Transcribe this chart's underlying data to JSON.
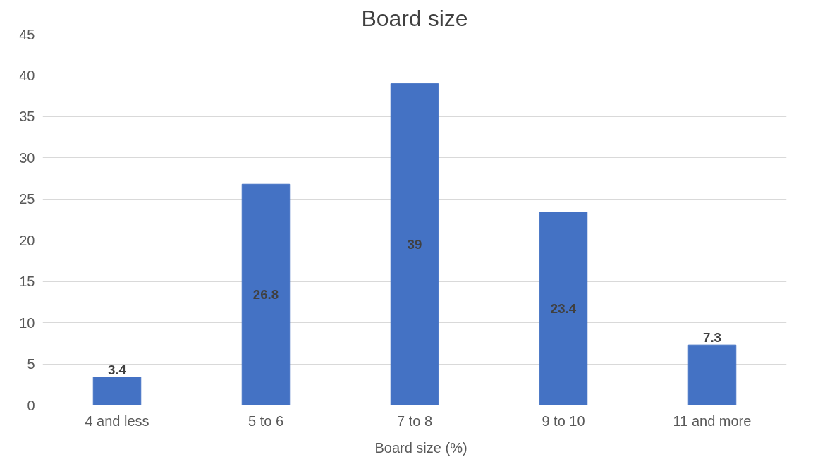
{
  "chart_data": {
    "type": "bar",
    "title": "Board size",
    "categories": [
      "4 and less",
      "5 to 6",
      "7 to 8",
      "9 to 10",
      "11 and more"
    ],
    "series": [
      {
        "name": "Board size (%)",
        "color": "#4472c4",
        "values": [
          3.4,
          26.8,
          39,
          23.4,
          7.3
        ]
      }
    ],
    "ylim": [
      0,
      45
    ],
    "yticks": [
      0,
      5,
      10,
      15,
      20,
      25,
      30,
      35,
      40,
      45
    ],
    "grid": "y",
    "legend": "bottom",
    "data_labels": true
  }
}
